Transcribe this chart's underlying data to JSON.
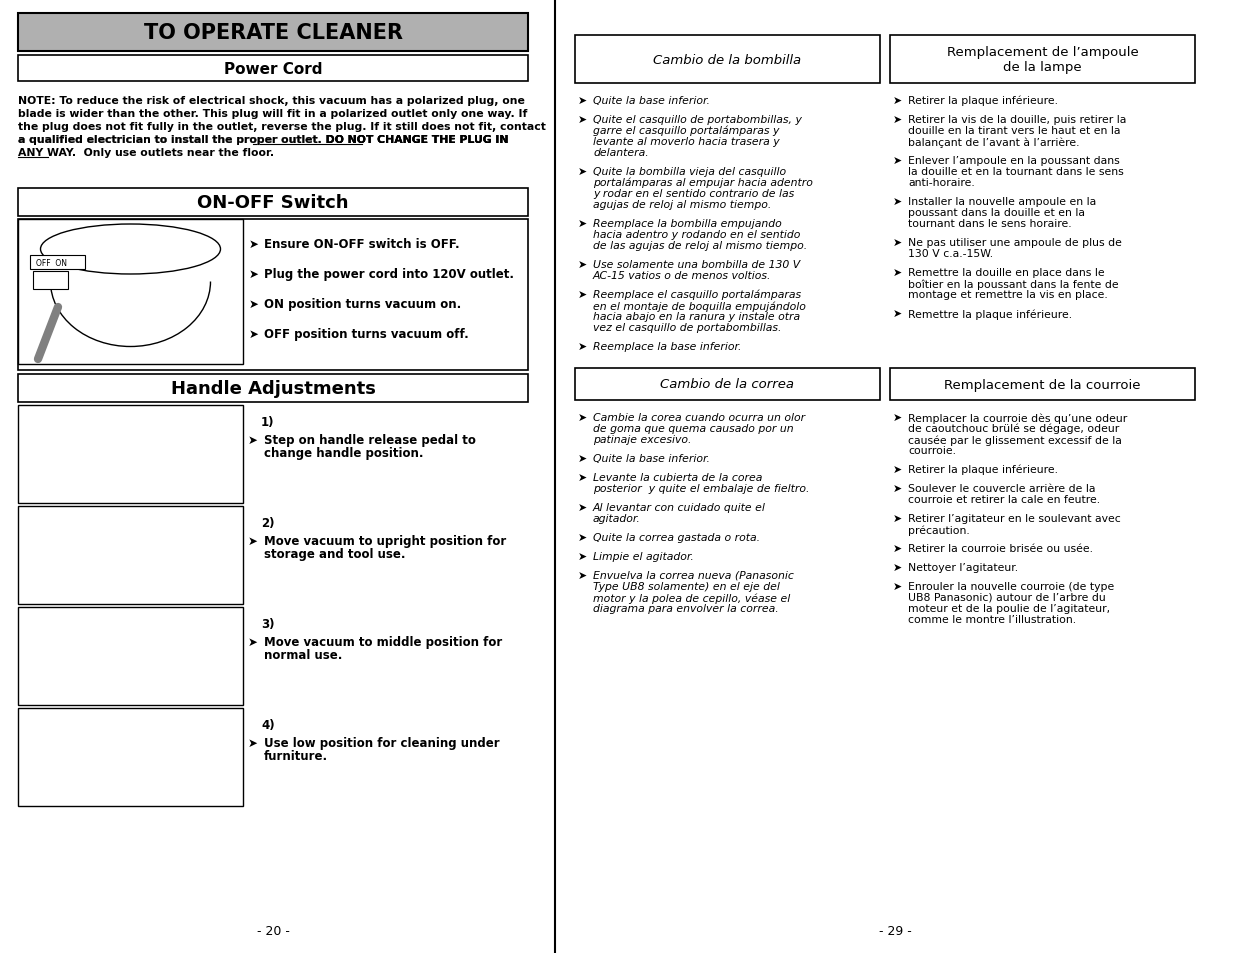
{
  "bg_color": "#ffffff",
  "page_numbers": [
    "- 20 -",
    "- 29 -"
  ],
  "left_panel": {
    "main_title": "TO OPERATE CLEANER",
    "main_title_bg": "#b0b0b0",
    "section1_title": "Power Cord",
    "section1_note_lines": [
      "NOTE: To reduce the risk of electrical shock, this vacuum has a polarized plug, one",
      "blade is wider than the other. This plug will fit in a polarized outlet only one way. If",
      "the plug does not fit fully in the outlet, reverse the plug. If it still does not fit, contact",
      "a qualified electrician to install the proper outlet. DO NOT CHANGE THE PLUG IN",
      "ANY WAY.  Only use outlets near the floor."
    ],
    "underline_line3_start": "a qualified electrician to install the proper outlet. ",
    "underline_line3_text": "DO NOT CHANGE THE PLUG IN",
    "underline_line4_text": "ANY WAY",
    "underline_line4_rest": ".  Only use outlets near the floor.",
    "section2_title": "ON-OFF Switch",
    "section2_bullets": [
      "Ensure ON-OFF switch is OFF.",
      "Plug the power cord into 120V outlet.",
      "ON position turns vacuum on.",
      "OFF position turns vacuum off."
    ],
    "section3_title": "Handle Adjustments",
    "handle_steps": [
      {
        "num": "1)",
        "bullet": "Step on handle release pedal to\nchange handle position."
      },
      {
        "num": "2)",
        "bullet": "Move vacuum to upright position for\nstorage and tool use."
      },
      {
        "num": "3)",
        "bullet": "Move vacuum to middle position for\nnormal use."
      },
      {
        "num": "4)",
        "bullet": "Use low position for cleaning under\nfurniture."
      }
    ]
  },
  "right_panel": {
    "col1_header": "Cambio de la bombilla",
    "col2_header": "Remplacement de l’ampoule\nde la lampe",
    "col1_bullets_top": [
      "Quite la base inferior.",
      "Quite el casquillo de portabombillas, y\ngarre el casquillo portalámparas y\nlevante al moverlo hacia trasera y\ndelantera.",
      "Quite la bombilla vieja del casquillo\nportalámparas al empujar hacia adentro\ny rodar en el sentido contrario de las\nagujas de reloj al mismo tiempo.",
      "Reemplace la bombilla empujando\nhacia adentro y rodando en el sentido\nde las agujas de reloj al mismo tiempo.",
      "Use solamente una bombilla de 130 V\nAC-15 vatios o de menos voltios.",
      "Reemplace el casquillo portalámparas\nen el montaje de boquilla empujándolo\nhacia abajo en la ranura y instale otra\nvez el casquillo de portabombillas.",
      "Reemplace la base inferior."
    ],
    "col2_bullets_top": [
      "Retirer la plaque inférieure.",
      "Retirer la vis de la douille, puis retirer la\ndouille en la tirant vers le haut et en la\nbalançant de l’avant à l’arrière.",
      "Enlever l’ampoule en la poussant dans\nla douille et en la tournant dans le sens\nanti-horaire.",
      "Installer la nouvelle ampoule en la\npoussant dans la douille et en la\ntournant dans le sens horaire.",
      "Ne pas utiliser une ampoule de plus de\n130 V c.a.-15W.",
      "Remettre la douille en place dans le\nboîtier en la poussant dans la fente de\nmontage et remettre la vis en place.",
      "Remettre la plaque inférieure."
    ],
    "col1_header2": "Cambio de la correa",
    "col2_header2": "Remplacement de la courroie",
    "col1_bullets_bot": [
      "Cambie la corea cuando ocurra un olor\nde goma que quema causado por un\npatinaje excesivo.",
      "Quite la base inferior.",
      "Levante la cubierta de la corea\nposterior  y quite el embalaje de fieltro.",
      "Al levantar con cuidado quite el\nagitador.",
      "Quite la correa gastada o rota.",
      "Limpie el agitador.",
      "Envuelva la correa nueva (Panasonic\nType UB8 solamente) en el eje del\nmotor y la polea de cepillo, véase el\ndiagrama para envolver la correa."
    ],
    "col2_bullets_bot": [
      "Remplacer la courroie dès qu’une odeur\nde caoutchouc brülé se dégage, odeur\ncausée par le glissement excessif de la\ncourroie.",
      "Retirer la plaque inférieure.",
      "Soulever le couvercle arrière de la\ncourroie et retirer la cale en feutre.",
      "Retirer l’agitateur en le soulevant avec\nprécaution.",
      "Retirer la courroie brisée ou usée.",
      "Nettoyer l’agitateur.",
      "Enrouler la nouvelle courroie (de type\nUB8 Panasonic) autour de l’arbre du\nmoteur et de la poulie de l’agitateur,\ncomme le montre l’illustration."
    ]
  }
}
